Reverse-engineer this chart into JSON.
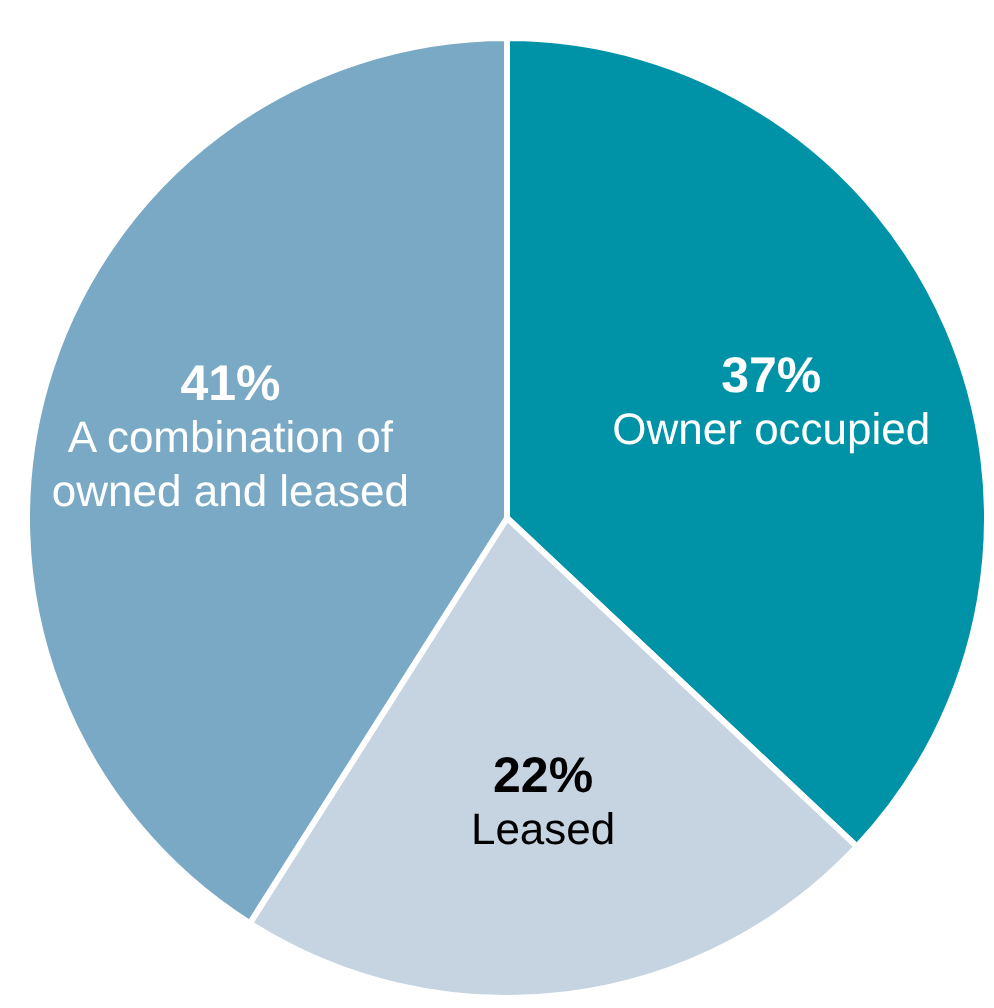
{
  "chart_data": {
    "type": "pie",
    "categories": [
      "Owner occupied",
      "Leased",
      "A combination of owned and leased"
    ],
    "values": [
      37,
      22,
      41
    ],
    "colors": [
      "#0093a7",
      "#c6d4e2",
      "#79a9c4"
    ],
    "value_labels": [
      "37%",
      "22%",
      "41%"
    ],
    "legend": false
  }
}
